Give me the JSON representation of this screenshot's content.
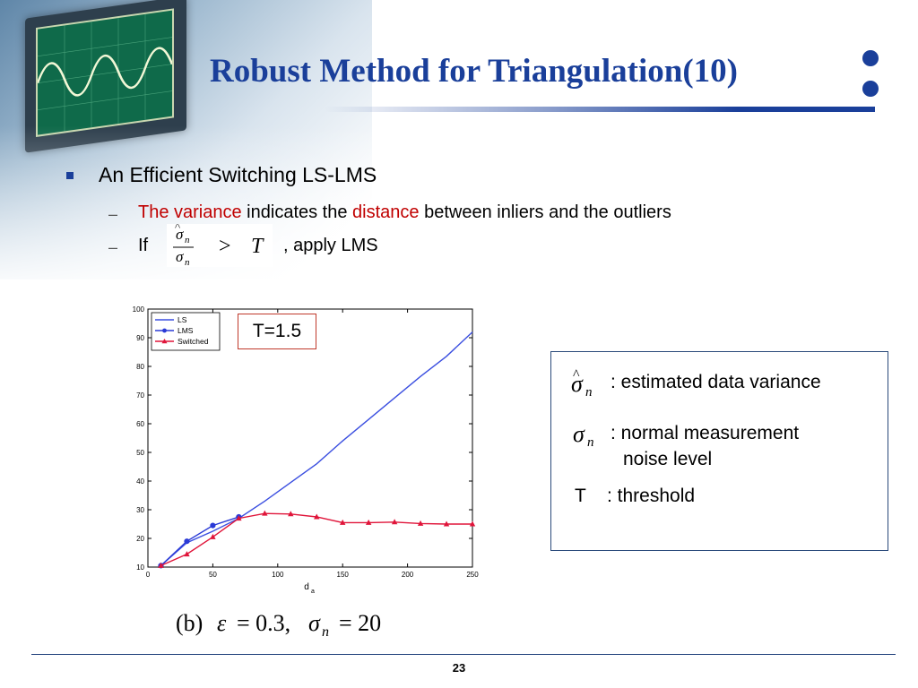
{
  "title": "Robust Method for Triangulation(10)",
  "bullet": "An Efficient Switching LS-LMS",
  "sub1": {
    "red1": "The variance",
    "t1": " indicates the ",
    "red2": "distance",
    "t2": " between inliers and the outliers"
  },
  "sub2": {
    "prefix": "If",
    "suffix": ", apply LMS"
  },
  "threshold_label": "T=1.5",
  "caption": "(b) ε = 0.3, σn = 20",
  "legend_panel": {
    "est_label": ": estimated data variance",
    "normal_label_1": ": normal measurement",
    "normal_label_2": "noise level",
    "t_symbol": "T",
    "t_label": ": threshold"
  },
  "page_number": "23",
  "colors": {
    "title": "#1a3f9a",
    "ls": "#3b4fe0",
    "lms": "#2a3ad6",
    "switched": "#e0153a",
    "red_text": "#c00000"
  },
  "chart_data": {
    "type": "line",
    "xlabel": "d",
    "xlabel_sub": "a",
    "ylabel": "",
    "xlim": [
      0,
      250
    ],
    "ylim": [
      10,
      100
    ],
    "xticks": [
      0,
      50,
      100,
      150,
      200,
      250
    ],
    "yticks": [
      10,
      20,
      30,
      40,
      50,
      60,
      70,
      80,
      90,
      100
    ],
    "legend_position": "top-left",
    "grid": false,
    "series": [
      {
        "name": "LS",
        "marker": "none",
        "x": [
          10,
          30,
          50,
          70,
          90,
          110,
          130,
          150,
          170,
          190,
          210,
          230,
          250
        ],
        "values": [
          10.5,
          18.5,
          22.5,
          27,
          33,
          39.5,
          46,
          54,
          61.5,
          69,
          76.5,
          83.5,
          92
        ]
      },
      {
        "name": "LMS",
        "marker": "circle",
        "x": [
          10,
          30,
          50,
          70
        ],
        "values": [
          10.5,
          19,
          24.5,
          27.5
        ]
      },
      {
        "name": "Switched",
        "marker": "triangle",
        "x": [
          10,
          30,
          50,
          70,
          90,
          110,
          130,
          150,
          170,
          190,
          210,
          230,
          250
        ],
        "values": [
          10.5,
          14.5,
          20.5,
          27,
          28.7,
          28.5,
          27.5,
          25.5,
          25.5,
          25.7,
          25.2,
          25,
          25
        ]
      }
    ]
  }
}
